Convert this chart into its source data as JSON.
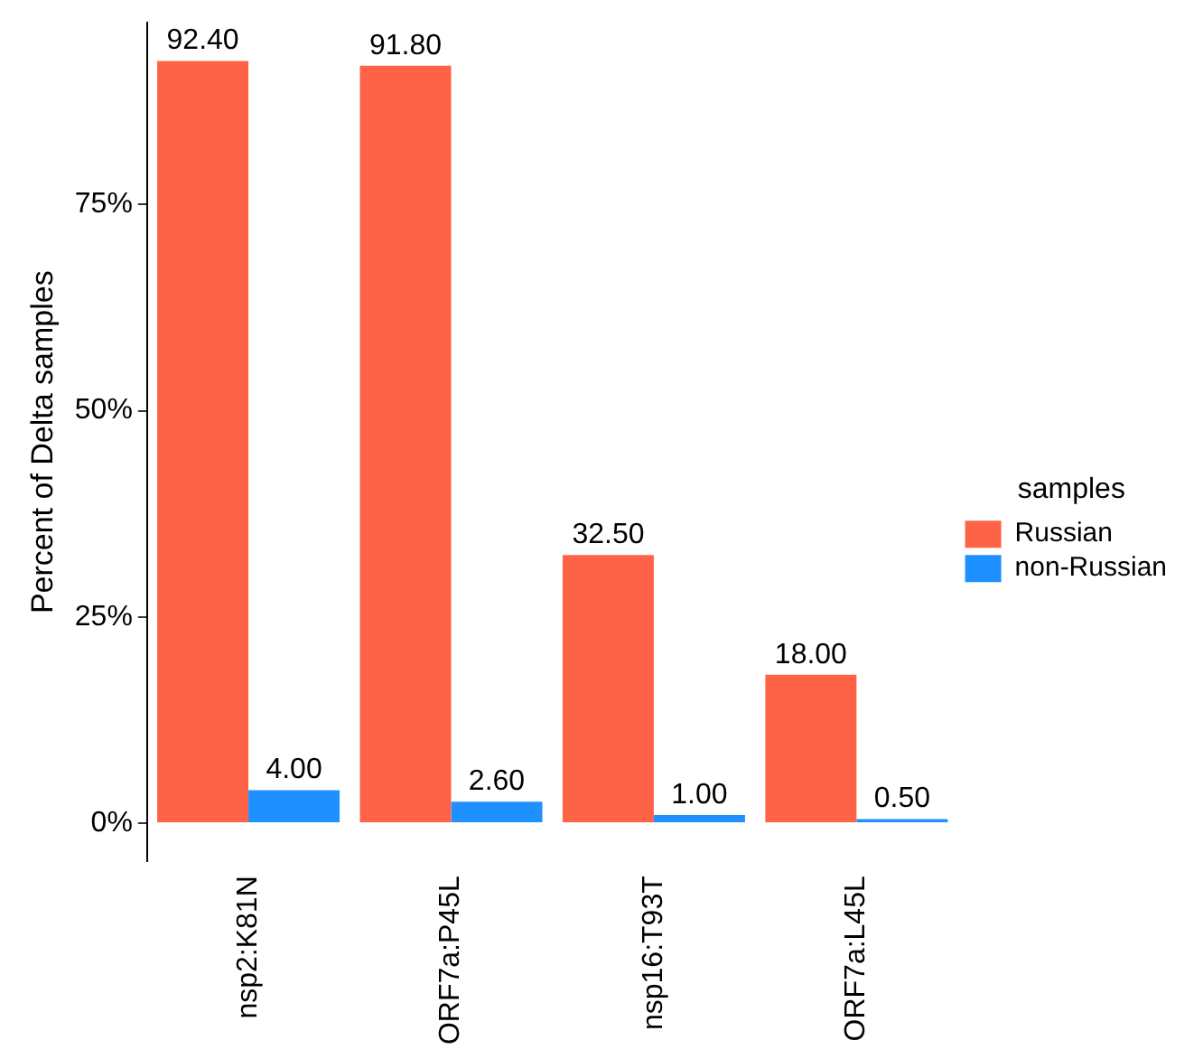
{
  "chart_data": {
    "type": "bar",
    "ylabel": "Percent of Delta samples",
    "legend_title": "samples",
    "categories": [
      "nsp2:K81N",
      "ORF7a:P45L",
      "nsp16:T93T",
      "ORF7a:L45L"
    ],
    "series": [
      {
        "name": "Russian",
        "color": "#ff6347",
        "values": [
          92.4,
          91.8,
          32.5,
          18.0
        ],
        "value_labels": [
          "92.40",
          "91.80",
          "32.50",
          "18.00"
        ]
      },
      {
        "name": "non-Russian",
        "color": "#1e90ff",
        "values": [
          4.0,
          2.6,
          1.0,
          0.5
        ],
        "value_labels": [
          "4.00",
          "2.60",
          "1.00",
          "0.50"
        ]
      }
    ],
    "ylim": [
      -4.62,
      97.02
    ],
    "yticks": [
      {
        "value": 0,
        "label": "0%"
      },
      {
        "value": 25,
        "label": "25%"
      },
      {
        "value": 50,
        "label": "50%"
      },
      {
        "value": 75,
        "label": "75%"
      }
    ],
    "grid": false,
    "legend": "right"
  }
}
